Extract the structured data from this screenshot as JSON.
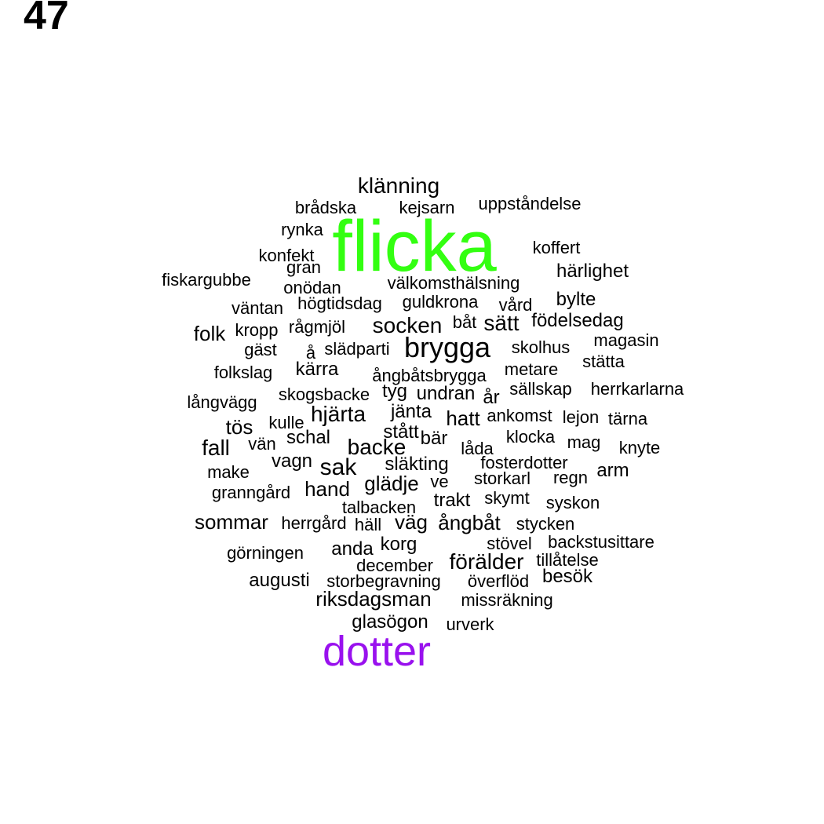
{
  "panel_number": "47",
  "colors": {
    "default": "#000000",
    "flicka": "#33ff11",
    "dotter": "#9911ee"
  },
  "words": [
    {
      "text": "flicka",
      "color": "#33ff11"
    },
    {
      "text": "dotter",
      "color": "#9911ee"
    },
    {
      "text": "brygga"
    },
    {
      "text": "klänning"
    },
    {
      "text": "brådska"
    },
    {
      "text": "kejsarn"
    },
    {
      "text": "uppståndelse"
    },
    {
      "text": "rynka"
    },
    {
      "text": "koffert"
    },
    {
      "text": "konfekt"
    },
    {
      "text": "gran"
    },
    {
      "text": "härlighet"
    },
    {
      "text": "fiskargubbe"
    },
    {
      "text": "onödan"
    },
    {
      "text": "välkomsthälsning"
    },
    {
      "text": "bylte"
    },
    {
      "text": "väntan"
    },
    {
      "text": "högtidsdag"
    },
    {
      "text": "guldkrona"
    },
    {
      "text": "vård"
    },
    {
      "text": "födelsedag"
    },
    {
      "text": "folk"
    },
    {
      "text": "kropp"
    },
    {
      "text": "rågmjöl"
    },
    {
      "text": "socken"
    },
    {
      "text": "båt"
    },
    {
      "text": "sätt"
    },
    {
      "text": "magasin"
    },
    {
      "text": "gäst"
    },
    {
      "text": "å"
    },
    {
      "text": "slädparti"
    },
    {
      "text": "skolhus"
    },
    {
      "text": "stätta"
    },
    {
      "text": "folkslag"
    },
    {
      "text": "kärra"
    },
    {
      "text": "ångbåtsbrygga"
    },
    {
      "text": "metare"
    },
    {
      "text": "långvägg"
    },
    {
      "text": "skogsbacke"
    },
    {
      "text": "tyg"
    },
    {
      "text": "undran"
    },
    {
      "text": "år"
    },
    {
      "text": "sällskap"
    },
    {
      "text": "herrkarlarna"
    },
    {
      "text": "hjärta"
    },
    {
      "text": "jänta"
    },
    {
      "text": "hatt"
    },
    {
      "text": "ankomst"
    },
    {
      "text": "lejon"
    },
    {
      "text": "tärna"
    },
    {
      "text": "kulle"
    },
    {
      "text": "tös"
    },
    {
      "text": "stått"
    },
    {
      "text": "schal"
    },
    {
      "text": "bär"
    },
    {
      "text": "klocka"
    },
    {
      "text": "mag"
    },
    {
      "text": "fall"
    },
    {
      "text": "vän"
    },
    {
      "text": "backe"
    },
    {
      "text": "låda"
    },
    {
      "text": "knyte"
    },
    {
      "text": "vagn"
    },
    {
      "text": "släkting"
    },
    {
      "text": "fosterdotter"
    },
    {
      "text": "make"
    },
    {
      "text": "sak"
    },
    {
      "text": "arm"
    },
    {
      "text": "glädje"
    },
    {
      "text": "ve"
    },
    {
      "text": "storkarl"
    },
    {
      "text": "regn"
    },
    {
      "text": "granngård"
    },
    {
      "text": "hand"
    },
    {
      "text": "trakt"
    },
    {
      "text": "skymt"
    },
    {
      "text": "talbacken"
    },
    {
      "text": "syskon"
    },
    {
      "text": "sommar"
    },
    {
      "text": "herrgård"
    },
    {
      "text": "häll"
    },
    {
      "text": "väg"
    },
    {
      "text": "ångbåt"
    },
    {
      "text": "stycken"
    },
    {
      "text": "stövel"
    },
    {
      "text": "backstusittare"
    },
    {
      "text": "görningen"
    },
    {
      "text": "anda"
    },
    {
      "text": "korg"
    },
    {
      "text": "december"
    },
    {
      "text": "förälder"
    },
    {
      "text": "tillåtelse"
    },
    {
      "text": "augusti"
    },
    {
      "text": "storbegravning"
    },
    {
      "text": "överflöd"
    },
    {
      "text": "besök"
    },
    {
      "text": "riksdagsman"
    },
    {
      "text": "missräkning"
    },
    {
      "text": "glasögon"
    },
    {
      "text": "urverk"
    }
  ]
}
